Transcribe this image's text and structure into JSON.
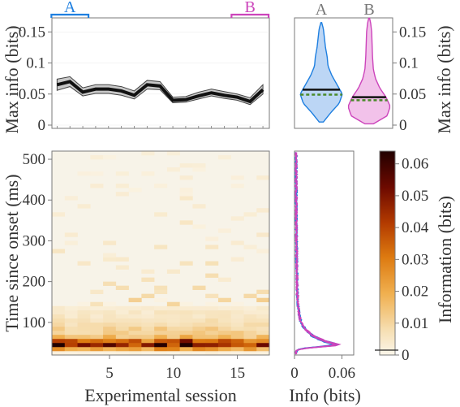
{
  "colors": {
    "group_a": "#1e7fe0",
    "group_b": "#cc44bb",
    "violin_a_fill": "#bcd6f5",
    "violin_b_fill": "#f2c2ea",
    "mean_line": "#111111",
    "band_fill": "#c8c8c8",
    "median_dash": "#4a8a2a",
    "axis": "#7a7a7a",
    "text": "#333333"
  },
  "chart_data": [
    {
      "id": "top-line",
      "type": "line",
      "ylabel": "Max info (bits)",
      "ylim": [
        0,
        0.17
      ],
      "xlim": [
        0.6,
        17.5
      ],
      "yticks": [
        "0",
        "0.05",
        "0.1",
        "0.15"
      ],
      "ytick_values": [
        0,
        0.05,
        0.1,
        0.15
      ],
      "x": [
        1,
        2,
        3,
        4,
        5,
        6,
        7,
        8,
        9,
        10,
        11,
        12,
        13,
        14,
        15,
        16,
        17
      ],
      "mean": [
        0.065,
        0.07,
        0.053,
        0.058,
        0.058,
        0.055,
        0.048,
        0.065,
        0.063,
        0.04,
        0.041,
        0.047,
        0.052,
        0.048,
        0.045,
        0.038,
        0.057
      ],
      "band_low": [
        0.056,
        0.062,
        0.047,
        0.051,
        0.051,
        0.048,
        0.042,
        0.058,
        0.057,
        0.036,
        0.037,
        0.042,
        0.047,
        0.043,
        0.04,
        0.033,
        0.05
      ],
      "band_high": [
        0.074,
        0.078,
        0.06,
        0.065,
        0.065,
        0.062,
        0.055,
        0.072,
        0.07,
        0.045,
        0.046,
        0.053,
        0.058,
        0.054,
        0.05,
        0.044,
        0.065
      ],
      "group_markers": [
        {
          "label": "A",
          "from": 1,
          "to": 3,
          "color": "#1e7fe0"
        },
        {
          "label": "B",
          "from": 15,
          "to": 17,
          "color": "#cc44bb"
        }
      ]
    },
    {
      "id": "violins",
      "type": "violin",
      "ylabel": "Max info (bits)",
      "ylim": [
        0,
        0.17
      ],
      "yticks": [
        "0",
        "0.05",
        "0.1",
        "0.15"
      ],
      "ytick_values": [
        0,
        0.05,
        0.1,
        0.15
      ],
      "groups": [
        {
          "label": "A",
          "mean": 0.057,
          "median": 0.049,
          "min": 0.005,
          "max": 0.165,
          "profile": [
            [
              0.005,
              0.1
            ],
            [
              0.02,
              0.45
            ],
            [
              0.035,
              0.85
            ],
            [
              0.05,
              1.0
            ],
            [
              0.065,
              0.75
            ],
            [
              0.08,
              0.5
            ],
            [
              0.095,
              0.32
            ],
            [
              0.11,
              0.28
            ],
            [
              0.125,
              0.2
            ],
            [
              0.14,
              0.15
            ],
            [
              0.155,
              0.1
            ],
            [
              0.165,
              0.02
            ]
          ]
        },
        {
          "label": "B",
          "mean": 0.045,
          "median": 0.04,
          "min": 0.002,
          "max": 0.172,
          "profile": [
            [
              0.002,
              0.2
            ],
            [
              0.015,
              0.85
            ],
            [
              0.03,
              1.0
            ],
            [
              0.045,
              0.8
            ],
            [
              0.06,
              0.5
            ],
            [
              0.075,
              0.3
            ],
            [
              0.09,
              0.2
            ],
            [
              0.11,
              0.16
            ],
            [
              0.13,
              0.14
            ],
            [
              0.15,
              0.12
            ],
            [
              0.165,
              0.07
            ],
            [
              0.172,
              0.02
            ]
          ]
        }
      ]
    },
    {
      "id": "heatmap",
      "type": "heatmap",
      "xlabel": "Experimental session",
      "ylabel": "Time since onset (ms)",
      "xlim": [
        0.5,
        17.5
      ],
      "ylim": [
        20,
        520
      ],
      "xticks": [
        "5",
        "10",
        "15"
      ],
      "xtick_values": [
        5,
        10,
        15
      ],
      "yticks": [
        "100",
        "200",
        "300",
        "400",
        "500"
      ],
      "ytick_values": [
        100,
        200,
        300,
        400,
        500
      ],
      "sessions": 17,
      "bin_ms": 10,
      "profile_by_time": [
        [
          30,
          0.002
        ],
        [
          40,
          0.045
        ],
        [
          50,
          0.05
        ],
        [
          60,
          0.02
        ],
        [
          70,
          0.013
        ],
        [
          80,
          0.011
        ],
        [
          90,
          0.009
        ],
        [
          100,
          0.007
        ],
        [
          110,
          0.006
        ],
        [
          120,
          0.005
        ],
        [
          130,
          0.004
        ],
        [
          140,
          0.003
        ],
        [
          160,
          0.002
        ],
        [
          200,
          0.0015
        ],
        [
          260,
          0.001
        ],
        [
          360,
          0.0008
        ],
        [
          520,
          0.0005
        ]
      ]
    },
    {
      "id": "info-profile",
      "type": "line",
      "xlabel": "Info (bits)",
      "xlim": [
        0,
        0.075
      ],
      "ylim": [
        20,
        520
      ],
      "xticks": [
        "0",
        "0.06"
      ],
      "xtick_values": [
        0,
        0.06
      ],
      "peak_time_ms": 45,
      "peak_info": [
        0.05,
        0.052,
        0.044,
        0.047,
        0.053
      ],
      "colors_by_group": [
        "A",
        "A",
        "A",
        "B",
        "B"
      ]
    },
    {
      "id": "colorbar",
      "type": "heatmap",
      "title": "",
      "ylabel": "Information (bits)",
      "range": [
        0,
        0.064
      ],
      "ticks": [
        "0",
        "0.01",
        "0.02",
        "0.03",
        "0.04",
        "0.05",
        "0.06"
      ],
      "tick_values": [
        0,
        0.01,
        0.02,
        0.03,
        0.04,
        0.05,
        0.06
      ]
    }
  ]
}
